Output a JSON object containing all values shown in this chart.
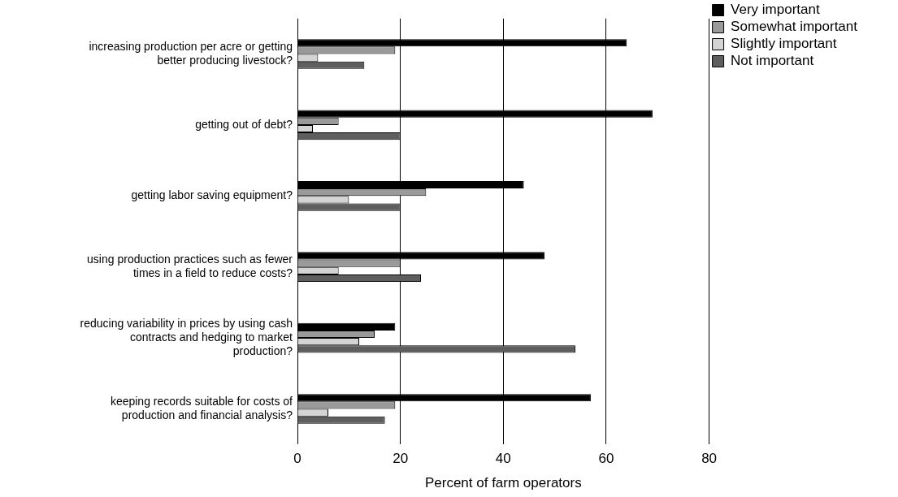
{
  "chart_data": {
    "type": "bar",
    "orientation": "horizontal",
    "xlabel": "Percent of farm operators",
    "categories": [
      "increasing production per acre or getting better producing livestock?",
      "getting out of debt?",
      "getting labor saving equipment?",
      "using production practices such as fewer times in a field to reduce costs?",
      "reducing variability in prices by using cash contracts and hedging to market production?",
      "keeping records suitable for costs of production and financial analysis?"
    ],
    "series": [
      {
        "name": "Very important",
        "color": "#000000",
        "values": [
          64,
          69,
          44,
          48,
          19,
          57
        ]
      },
      {
        "name": "Somewhat important",
        "color": "#9a9a9a",
        "values": [
          19,
          8,
          25,
          20,
          15,
          19
        ]
      },
      {
        "name": "Slightly important",
        "color": "#d4d4d4",
        "values": [
          4,
          3,
          10,
          8,
          12,
          6
        ]
      },
      {
        "name": "Not important",
        "color": "#5e5e5e",
        "values": [
          13,
          20,
          20,
          24,
          54,
          17
        ]
      }
    ],
    "xlim": [
      0,
      80
    ],
    "xticks": [
      0,
      20,
      40,
      60,
      80
    ],
    "grid": "x",
    "legend": "top right"
  }
}
